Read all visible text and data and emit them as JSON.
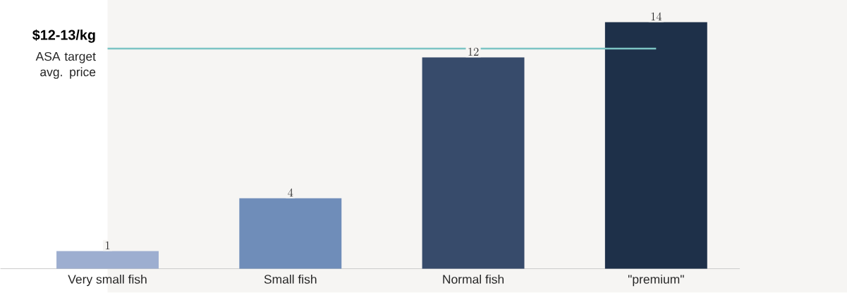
{
  "chart_data": {
    "type": "bar",
    "categories": [
      "Very small fish",
      "Small fish",
      "Normal fish",
      "\"premium\""
    ],
    "values": [
      1,
      4,
      12,
      14
    ],
    "colors": [
      "#9daed0",
      "#6f8db9",
      "#374b6b",
      "#1e3049"
    ],
    "data_labels": true,
    "ref_lines": [
      {
        "axis": "y",
        "value": 12.5,
        "label": "$12-13/kg",
        "color": "#7cc4c4"
      }
    ],
    "annotations": [
      "ASA target avg. price"
    ]
  }
}
